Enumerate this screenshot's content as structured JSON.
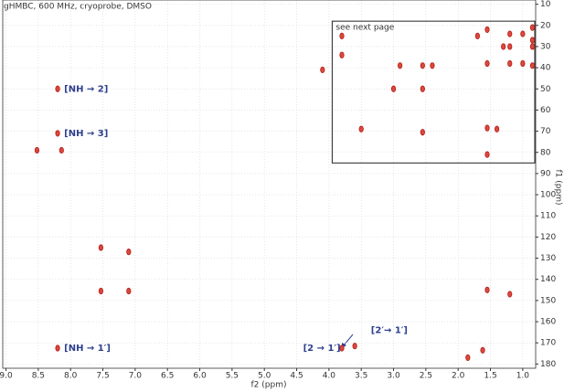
{
  "chart_data": {
    "type": "scatter",
    "title": "gHMBC, 600 MHz, cryoprobe, DMSO",
    "x_label": "f2 (ppm)",
    "y_label": "f1 (ppm)",
    "color": "#b71c1c",
    "x": [
      8.52,
      8.14,
      8.2,
      8.2,
      7.53,
      7.1,
      7.53,
      7.1,
      8.2,
      3.8,
      3.6,
      1.62,
      1.85,
      1.55,
      1.2,
      1.55,
      3.8,
      3.8,
      3.5,
      3.0,
      2.55,
      2.55,
      2.55,
      2.4,
      2.9,
      1.55,
      1.4,
      1.7,
      1.55,
      1.3,
      1.2,
      1.2,
      1.0,
      0.85,
      0.85,
      0.85,
      0.85,
      1.0,
      1.2,
      1.55,
      4.1
    ],
    "values": [
      79,
      79,
      50,
      71,
      125,
      127,
      145.5,
      145.5,
      172.5,
      172.5,
      171.5,
      173.5,
      177,
      145,
      147,
      81,
      25,
      34,
      69,
      50,
      39,
      50,
      70.5,
      39,
      39,
      68.5,
      69,
      25,
      22,
      30,
      30,
      24,
      24,
      21,
      27,
      30,
      39,
      38,
      38,
      38,
      41
    ],
    "xlim": [
      9.05,
      0.8
    ],
    "ylim": [
      8,
      182
    ],
    "xticks": [
      {
        "value": 9,
        "label": "9.0"
      },
      8.5,
      {
        "value": 8,
        "label": "8.0"
      },
      7.5,
      {
        "value": 7,
        "label": "7.0"
      },
      6.5,
      {
        "value": 6,
        "label": "6.0"
      },
      5.5,
      {
        "value": 5,
        "label": "5.0"
      },
      4.5,
      {
        "value": 4,
        "label": "4.0"
      },
      3.5,
      {
        "value": 3,
        "label": "3.0"
      },
      2.5,
      {
        "value": 2,
        "label": "2.0"
      },
      1.5,
      {
        "value": 1,
        "label": "1.0"
      }
    ],
    "yticks": [
      10,
      20,
      30,
      40,
      50,
      60,
      70,
      80,
      90,
      100,
      110,
      120,
      130,
      140,
      150,
      160,
      170,
      180
    ],
    "grid": true,
    "annotations": [
      {
        "text": "[NH → 2]",
        "x": 8.1,
        "y": 50
      },
      {
        "text": "[NH → 3]",
        "x": 8.1,
        "y": 71
      },
      {
        "text": "[NH → 1′]",
        "x": 8.1,
        "y": 172.5
      },
      {
        "text": "[2 → 1′]",
        "x": 4.4,
        "y": 172.5
      },
      {
        "text": "[2′→ 1′]",
        "x": 3.35,
        "y": 164
      }
    ],
    "box": {
      "label": "see next page",
      "x": [
        3.95,
        0.8
      ],
      "y": [
        18,
        85
      ]
    }
  }
}
